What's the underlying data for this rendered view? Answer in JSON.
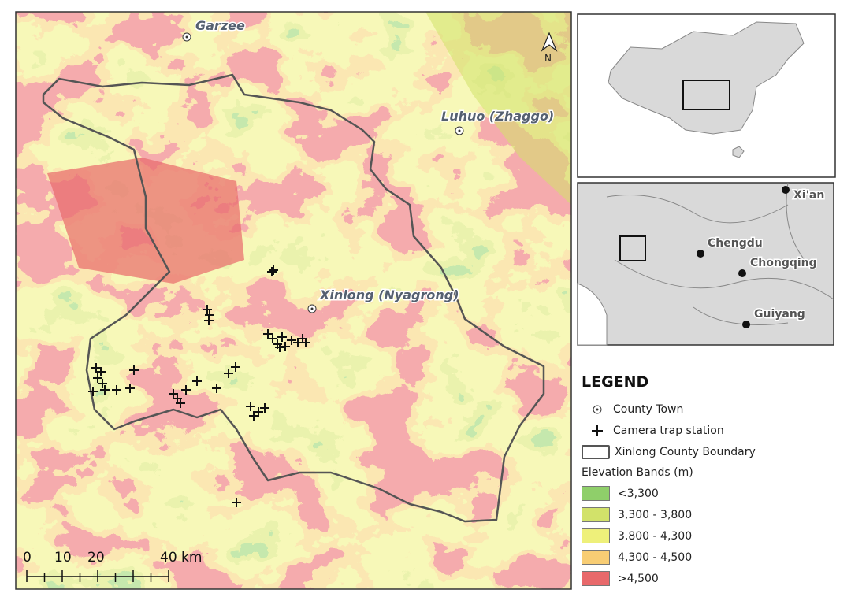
{
  "map": {
    "county_towns": [
      {
        "name": "Garzee"
      },
      {
        "name": "Luhuo (Zhaggo)"
      },
      {
        "name": "Xinlong (Nyagrong)"
      }
    ],
    "north_arrow": "N",
    "scale_bar": {
      "ticks": [
        "0",
        "10",
        "20",
        "40 km"
      ]
    },
    "colors": {
      "lt3300": "#8fcf6a",
      "b3300_3800": "#d2e26a",
      "b3800_4300": "#eef07a",
      "b4300_4500": "#f8cd74",
      "gt4500": "#e8696b",
      "boundary": "#555555"
    }
  },
  "inset_region": {
    "cities": [
      {
        "name": "Xi'an"
      },
      {
        "name": "Chengdu"
      },
      {
        "name": "Chongqing"
      },
      {
        "name": "Guiyang"
      }
    ]
  },
  "legend": {
    "title": "LEGEND",
    "county_town": "County Town",
    "camera_trap": "Camera trap station",
    "boundary": "Xinlong County Boundary",
    "elevation_title": "Elevation Bands (m)",
    "bands": [
      {
        "label": "<3,300",
        "color": "#8fcf6a"
      },
      {
        "label": "3,300 - 3,800",
        "color": "#d2e26a"
      },
      {
        "label": "3,800 - 4,300",
        "color": "#eef07a"
      },
      {
        "label": "4,300 - 4,500",
        "color": "#f8cd74"
      },
      {
        "label": ">4,500",
        "color": "#e8696b"
      }
    ]
  }
}
